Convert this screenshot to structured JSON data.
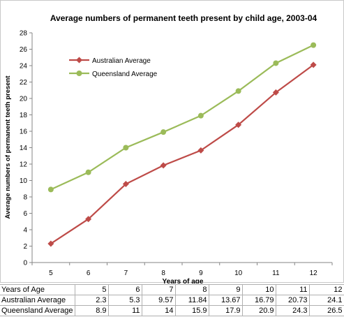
{
  "chart_data": {
    "type": "line",
    "title": "Average numbers of permanent teeth present by child age, 2003-04",
    "xlabel": "Years of age",
    "ylabel": "Average numbers of permanent teeth present",
    "x": [
      5,
      6,
      7,
      8,
      9,
      10,
      11,
      12
    ],
    "ylim": [
      0,
      28
    ],
    "yticks": [
      0,
      2,
      4,
      6,
      8,
      10,
      12,
      14,
      16,
      18,
      20,
      22,
      24,
      26,
      28
    ],
    "grid": false,
    "legend_position": "top-left",
    "series": [
      {
        "name": "Australian Average",
        "values": [
          2.3,
          5.3,
          9.57,
          11.84,
          13.67,
          16.79,
          20.73,
          24.1
        ],
        "color": "#be4b48",
        "marker": "diamond"
      },
      {
        "name": "Queensland Average",
        "values": [
          8.9,
          11,
          14,
          15.9,
          17.9,
          20.9,
          24.3,
          26.5
        ],
        "color": "#9bbb59",
        "marker": "circle"
      }
    ]
  },
  "table": {
    "header_label": "Years of Age",
    "columns": [
      "5",
      "6",
      "7",
      "8",
      "9",
      "10",
      "11",
      "12"
    ],
    "rows": [
      {
        "label": "Australian Average",
        "cells": [
          "2.3",
          "5.3",
          "9.57",
          "11.84",
          "13.67",
          "16.79",
          "20.73",
          "24.1"
        ]
      },
      {
        "label": "Queensland Average",
        "cells": [
          "8.9",
          "11",
          "14",
          "15.9",
          "17.9",
          "20.9",
          "24.3",
          "26.5"
        ]
      }
    ]
  }
}
